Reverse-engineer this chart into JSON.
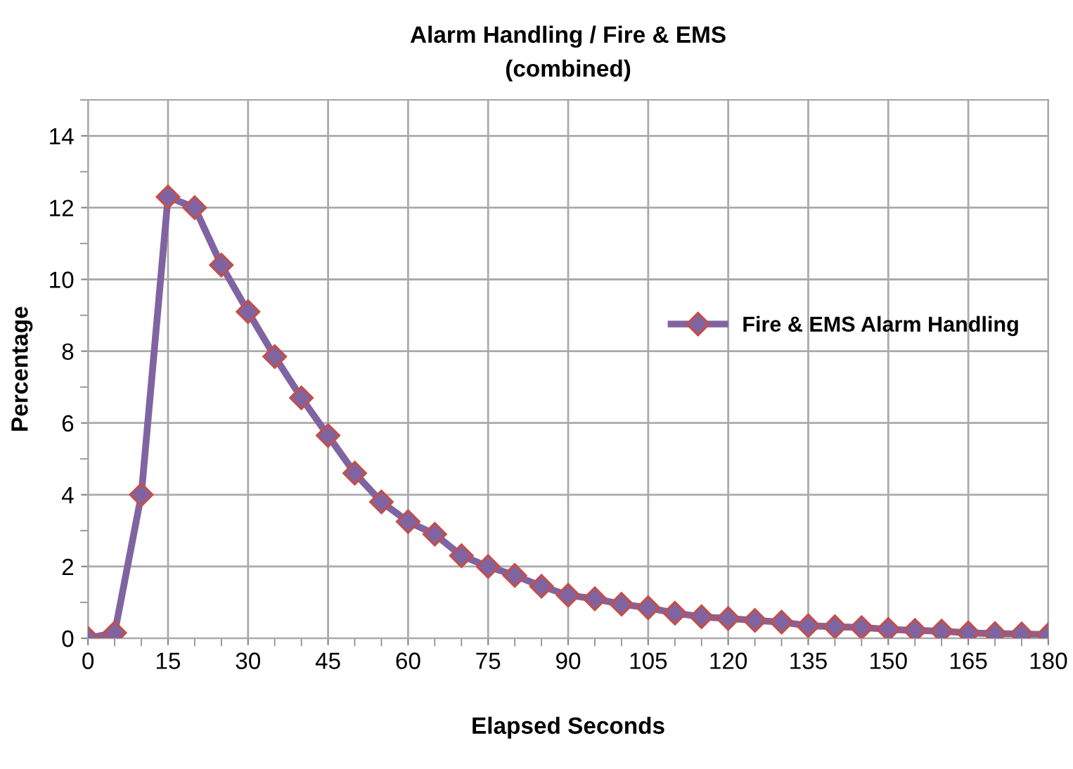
{
  "chart_data": {
    "type": "line",
    "title": "Alarm Handling / Fire & EMS\n(combined)",
    "xlabel": "Elapsed Seconds",
    "ylabel": "Percentage",
    "x": [
      0,
      5,
      10,
      15,
      20,
      25,
      30,
      35,
      40,
      45,
      50,
      55,
      60,
      65,
      70,
      75,
      80,
      85,
      90,
      95,
      100,
      105,
      110,
      115,
      120,
      125,
      130,
      135,
      140,
      145,
      150,
      155,
      160,
      165,
      170,
      175,
      180
    ],
    "series": [
      {
        "name": "Fire & EMS Alarm Handling",
        "color": "#8064a2",
        "values": [
          0,
          0.15,
          4.0,
          12.3,
          12.0,
          10.4,
          9.1,
          7.85,
          6.7,
          5.65,
          4.6,
          3.8,
          3.25,
          2.9,
          2.3,
          2.0,
          1.75,
          1.45,
          1.2,
          1.1,
          0.95,
          0.85,
          0.7,
          0.6,
          0.55,
          0.5,
          0.45,
          0.35,
          0.32,
          0.3,
          0.25,
          0.22,
          0.2,
          0.15,
          0.13,
          0.12,
          0.1
        ]
      }
    ],
    "xlim": [
      0,
      180
    ],
    "xticks": [
      0,
      15,
      30,
      45,
      60,
      75,
      90,
      105,
      120,
      135,
      150,
      165,
      180
    ],
    "ylim": [
      0,
      15
    ],
    "yticks": [
      0,
      2,
      4,
      6,
      8,
      10,
      12,
      14
    ],
    "grid": true,
    "legend": "right",
    "marker": "diamond",
    "line_style": "solid"
  }
}
